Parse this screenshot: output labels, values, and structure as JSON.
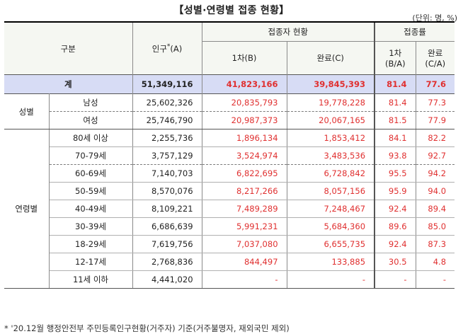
{
  "title": "【성별·연령별 접종 현황】",
  "unit": "(단위: 명, %)",
  "headers": {
    "category": "구분",
    "population": "인구",
    "population_mark": "*",
    "population_code": "(A)",
    "vaccinated_group": "접종자 현황",
    "rate_group": "접종률",
    "first_dose": "1차(B)",
    "completed": "완료(C)",
    "rate_first": "1차",
    "rate_first_formula": "(B/A)",
    "rate_completed": "완료",
    "rate_completed_formula": "(C/A)"
  },
  "total": {
    "label": "계",
    "population": "51,349,116",
    "first": "41,823,166",
    "completed": "39,845,393",
    "rate_first": "81.4",
    "rate_completed": "77.6"
  },
  "sex_label": "성별",
  "sex_rows": [
    {
      "label": "남성",
      "population": "25,602,326",
      "first": "20,835,793",
      "completed": "19,778,228",
      "rate_first": "81.4",
      "rate_completed": "77.3"
    },
    {
      "label": "여성",
      "population": "25,746,790",
      "first": "20,987,373",
      "completed": "20,067,165",
      "rate_first": "81.5",
      "rate_completed": "77.9"
    }
  ],
  "age_label": "연령별",
  "age_rows": [
    {
      "label": "80세 이상",
      "population": "2,255,736",
      "first": "1,896,134",
      "completed": "1,853,412",
      "rate_first": "84.1",
      "rate_completed": "82.2"
    },
    {
      "label": "70-79세",
      "population": "3,757,129",
      "first": "3,524,974",
      "completed": "3,483,536",
      "rate_first": "93.8",
      "rate_completed": "92.7"
    },
    {
      "label": "60-69세",
      "population": "7,140,703",
      "first": "6,822,695",
      "completed": "6,728,842",
      "rate_first": "95.5",
      "rate_completed": "94.2"
    },
    {
      "label": "50-59세",
      "population": "8,570,076",
      "first": "8,217,266",
      "completed": "8,057,156",
      "rate_first": "95.9",
      "rate_completed": "94.0"
    },
    {
      "label": "40-49세",
      "population": "8,109,221",
      "first": "7,489,289",
      "completed": "7,248,467",
      "rate_first": "92.4",
      "rate_completed": "89.4"
    },
    {
      "label": "30-39세",
      "population": "6,686,639",
      "first": "5,991,231",
      "completed": "5,684,360",
      "rate_first": "89.6",
      "rate_completed": "85.0"
    },
    {
      "label": "18-29세",
      "population": "7,619,756",
      "first": "7,037,080",
      "completed": "6,655,735",
      "rate_first": "92.4",
      "rate_completed": "87.3"
    },
    {
      "label": "12-17세",
      "population": "2,768,836",
      "first": "844,497",
      "completed": "133,885",
      "rate_first": "30.5",
      "rate_completed": "4.8"
    },
    {
      "label": "11세 이하",
      "population": "4,441,020",
      "first": "-",
      "completed": "-",
      "rate_first": "-",
      "rate_completed": "-"
    }
  ],
  "footnote": "* '20.12월 행정안전부 주민등록인구현황(거주자) 기준(거주불명자, 재외국민 제외)"
}
